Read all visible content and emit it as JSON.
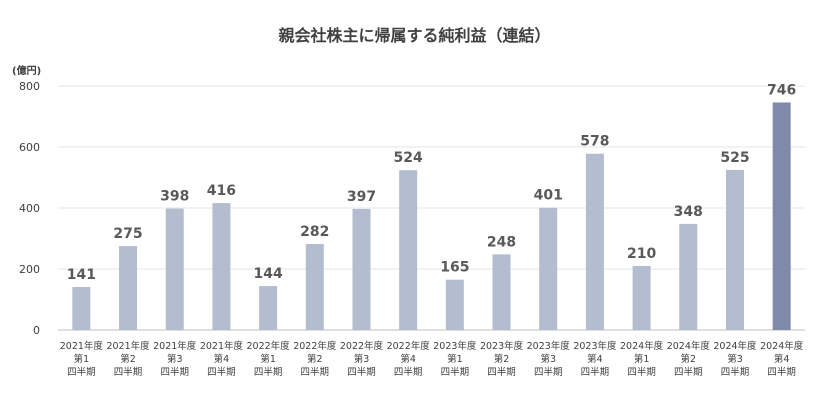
{
  "chart_data": {
    "type": "bar",
    "title": "親会社株主に帰属する純利益（連結）",
    "unit_label": "(億円)",
    "ylim": [
      0,
      800
    ],
    "yticks": [
      0,
      200,
      400,
      600,
      800
    ],
    "grid": true,
    "categories": [
      [
        "2021年度",
        "第1",
        "四半期"
      ],
      [
        "2021年度",
        "第2",
        "四半期"
      ],
      [
        "2021年度",
        "第3",
        "四半期"
      ],
      [
        "2021年度",
        "第4",
        "四半期"
      ],
      [
        "2022年度",
        "第1",
        "四半期"
      ],
      [
        "2022年度",
        "第2",
        "四半期"
      ],
      [
        "2022年度",
        "第3",
        "四半期"
      ],
      [
        "2022年度",
        "第4",
        "四半期"
      ],
      [
        "2023年度",
        "第1",
        "四半期"
      ],
      [
        "2023年度",
        "第2",
        "四半期"
      ],
      [
        "2023年度",
        "第3",
        "四半期"
      ],
      [
        "2023年度",
        "第4",
        "四半期"
      ],
      [
        "2024年度",
        "第1",
        "四半期"
      ],
      [
        "2024年度",
        "第2",
        "四半期"
      ],
      [
        "2024年度",
        "第3",
        "四半期"
      ],
      [
        "2024年度",
        "第4",
        "四半期"
      ]
    ],
    "values": [
      141,
      275,
      398,
      416,
      144,
      282,
      397,
      524,
      165,
      248,
      401,
      578,
      210,
      348,
      525,
      746
    ],
    "colors": {
      "bar": "#b4bccf",
      "highlight": "#7f8aab"
    },
    "highlight_index": 15
  }
}
